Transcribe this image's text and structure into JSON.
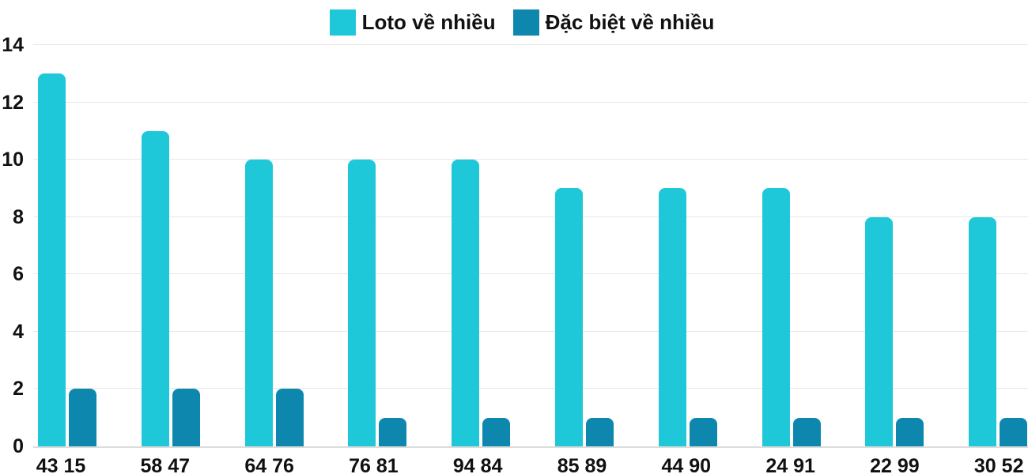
{
  "chart_data": {
    "type": "bar",
    "title": "",
    "xlabel": "",
    "ylabel": "",
    "categories": [
      "43 15",
      "58 47",
      "64 76",
      "76 81",
      "94 84",
      "85 89",
      "44 90",
      "24 91",
      "22 99",
      "30 52"
    ],
    "series": [
      {
        "name": "Loto về nhiều",
        "color": "#1FC8D9",
        "values": [
          13,
          11,
          10,
          10,
          10,
          9,
          9,
          9,
          8,
          8
        ]
      },
      {
        "name": "Đặc biệt về nhiều",
        "color": "#0E87AF",
        "values": [
          2,
          2,
          2,
          1,
          1,
          1,
          1,
          1,
          1,
          1
        ]
      }
    ],
    "ylim": [
      0,
      14
    ],
    "yticks": [
      0,
      2,
      4,
      6,
      8,
      10,
      12,
      14
    ],
    "grid": "horizontal",
    "legend_position": "top"
  },
  "colors": {
    "background": "#ffffff",
    "gridline": "#e7e7e7",
    "baseline": "#dcdcdc",
    "text": "#111111",
    "series_loto": "#1FC8D9",
    "series_dacbiet": "#0E87AF"
  }
}
